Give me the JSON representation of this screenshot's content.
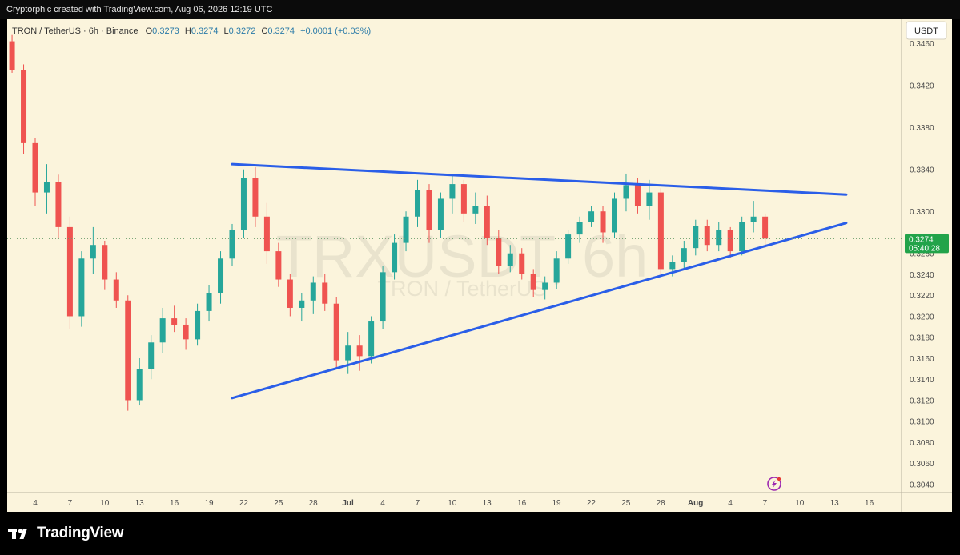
{
  "header": {
    "caption": "Cryptorphic created with TradingView.com, Aug 06, 2026 12:19 UTC"
  },
  "legend": {
    "symbol": "TRON / TetherUS · 6h · Binance",
    "o_label": "O",
    "o": "0.3273",
    "h_label": "H",
    "h": "0.3274",
    "l_label": "L",
    "l": "0.3272",
    "c_label": "C",
    "c": "0.3274",
    "change": "+0.0001 (+0.03%)"
  },
  "currency_button": "USDT",
  "watermark": {
    "ticker": "TRXUSDT, 6h",
    "name": "TRON / TetherUS"
  },
  "price_tag": {
    "price": "0.3274",
    "countdown": "05:40:28"
  },
  "footer": {
    "brand": "TradingView"
  },
  "colors": {
    "background": "#fbf4dc",
    "up": "#26a69a",
    "down": "#ef5350",
    "trendline": "#2a5ee8",
    "label_green": "#22a34a",
    "alert": "#9c27b0"
  },
  "icons": [
    "tradingview-logo-icon",
    "lightning-alert-icon"
  ],
  "chart_data": {
    "type": "candlestick",
    "title": "TRON / TetherUS · 6h · Binance",
    "ylabel": "USDT",
    "grid": false,
    "ylim": [
      0.3032,
      0.3483
    ],
    "y_ticks": [
      "0.3460",
      "0.3420",
      "0.3380",
      "0.3340",
      "0.3300",
      "0.3260",
      "0.3240",
      "0.3220",
      "0.3200",
      "0.3180",
      "0.3160",
      "0.3140",
      "0.3120",
      "0.3100",
      "0.3080",
      "0.3060",
      "0.3040"
    ],
    "x_ticks": [
      "4",
      "7",
      "10",
      "13",
      "16",
      "19",
      "22",
      "25",
      "28",
      "Jul",
      "4",
      "7",
      "10",
      "13",
      "16",
      "19",
      "22",
      "25",
      "28",
      "Aug",
      "4",
      "7",
      "10",
      "13",
      "16"
    ],
    "last_price": 0.3274,
    "series": [
      {
        "values": [
          {
            "t": "Jun 02",
            "o": 0.3462,
            "h": 0.3468,
            "l": 0.3432,
            "c": 0.3435
          },
          {
            "t": "Jun 03",
            "o": 0.3435,
            "h": 0.344,
            "l": 0.3355,
            "c": 0.3365
          },
          {
            "t": "Jun 04",
            "o": 0.3365,
            "h": 0.337,
            "l": 0.3305,
            "c": 0.3318
          },
          {
            "t": "Jun 05",
            "o": 0.3318,
            "h": 0.3345,
            "l": 0.3298,
            "c": 0.3328
          },
          {
            "t": "Jun 06",
            "o": 0.3328,
            "h": 0.3335,
            "l": 0.3275,
            "c": 0.3285
          },
          {
            "t": "Jun 07",
            "o": 0.3285,
            "h": 0.3295,
            "l": 0.3188,
            "c": 0.32
          },
          {
            "t": "Jun 08",
            "o": 0.32,
            "h": 0.3262,
            "l": 0.319,
            "c": 0.3255
          },
          {
            "t": "Jun 09",
            "o": 0.3255,
            "h": 0.3285,
            "l": 0.324,
            "c": 0.3268
          },
          {
            "t": "Jun 10",
            "o": 0.3268,
            "h": 0.3272,
            "l": 0.3225,
            "c": 0.3235
          },
          {
            "t": "Jun 11",
            "o": 0.3235,
            "h": 0.3242,
            "l": 0.3208,
            "c": 0.3215
          },
          {
            "t": "Jun 12",
            "o": 0.3215,
            "h": 0.322,
            "l": 0.311,
            "c": 0.312
          },
          {
            "t": "Jun 13",
            "o": 0.312,
            "h": 0.316,
            "l": 0.3115,
            "c": 0.315
          },
          {
            "t": "Jun 14",
            "o": 0.315,
            "h": 0.3182,
            "l": 0.314,
            "c": 0.3175
          },
          {
            "t": "Jun 15",
            "o": 0.3175,
            "h": 0.3208,
            "l": 0.3165,
            "c": 0.3198
          },
          {
            "t": "Jun 16",
            "o": 0.3198,
            "h": 0.321,
            "l": 0.3185,
            "c": 0.3192
          },
          {
            "t": "Jun 17",
            "o": 0.3192,
            "h": 0.3198,
            "l": 0.3168,
            "c": 0.3178
          },
          {
            "t": "Jun 18",
            "o": 0.3178,
            "h": 0.3212,
            "l": 0.3172,
            "c": 0.3205
          },
          {
            "t": "Jun 19",
            "o": 0.3205,
            "h": 0.323,
            "l": 0.3195,
            "c": 0.3222
          },
          {
            "t": "Jun 20",
            "o": 0.3222,
            "h": 0.3262,
            "l": 0.3212,
            "c": 0.3255
          },
          {
            "t": "Jun 21",
            "o": 0.3255,
            "h": 0.3288,
            "l": 0.3248,
            "c": 0.3282
          },
          {
            "t": "Jun 22",
            "o": 0.3282,
            "h": 0.334,
            "l": 0.3275,
            "c": 0.3332
          },
          {
            "t": "Jun 23",
            "o": 0.3332,
            "h": 0.3342,
            "l": 0.3285,
            "c": 0.3295
          },
          {
            "t": "Jun 24",
            "o": 0.3295,
            "h": 0.3308,
            "l": 0.325,
            "c": 0.3262
          },
          {
            "t": "Jun 25",
            "o": 0.3262,
            "h": 0.327,
            "l": 0.3228,
            "c": 0.3235
          },
          {
            "t": "Jun 26",
            "o": 0.3235,
            "h": 0.324,
            "l": 0.32,
            "c": 0.3208
          },
          {
            "t": "Jun 27",
            "o": 0.3208,
            "h": 0.3222,
            "l": 0.3195,
            "c": 0.3215
          },
          {
            "t": "Jun 28",
            "o": 0.3215,
            "h": 0.3238,
            "l": 0.3202,
            "c": 0.3232
          },
          {
            "t": "Jun 29",
            "o": 0.3232,
            "h": 0.324,
            "l": 0.3205,
            "c": 0.3212
          },
          {
            "t": "Jun 30",
            "o": 0.3212,
            "h": 0.3218,
            "l": 0.315,
            "c": 0.3158
          },
          {
            "t": "Jul 01",
            "o": 0.3158,
            "h": 0.3185,
            "l": 0.3145,
            "c": 0.3172
          },
          {
            "t": "Jul 02",
            "o": 0.3172,
            "h": 0.3182,
            "l": 0.3148,
            "c": 0.3162
          },
          {
            "t": "Jul 03",
            "o": 0.3162,
            "h": 0.32,
            "l": 0.3155,
            "c": 0.3195
          },
          {
            "t": "Jul 04",
            "o": 0.3195,
            "h": 0.3248,
            "l": 0.3188,
            "c": 0.3242
          },
          {
            "t": "Jul 05",
            "o": 0.3242,
            "h": 0.3278,
            "l": 0.3235,
            "c": 0.327
          },
          {
            "t": "Jul 06",
            "o": 0.327,
            "h": 0.33,
            "l": 0.3262,
            "c": 0.3295
          },
          {
            "t": "Jul 07",
            "o": 0.3295,
            "h": 0.333,
            "l": 0.3285,
            "c": 0.332
          },
          {
            "t": "Jul 08",
            "o": 0.332,
            "h": 0.3326,
            "l": 0.327,
            "c": 0.3282
          },
          {
            "t": "Jul 09",
            "o": 0.3282,
            "h": 0.3318,
            "l": 0.3275,
            "c": 0.3312
          },
          {
            "t": "Jul 10",
            "o": 0.3312,
            "h": 0.3335,
            "l": 0.3298,
            "c": 0.3326
          },
          {
            "t": "Jul 11",
            "o": 0.3326,
            "h": 0.333,
            "l": 0.329,
            "c": 0.3298
          },
          {
            "t": "Jul 12",
            "o": 0.3298,
            "h": 0.3318,
            "l": 0.3288,
            "c": 0.3305
          },
          {
            "t": "Jul 13",
            "o": 0.3305,
            "h": 0.3315,
            "l": 0.3268,
            "c": 0.3275
          },
          {
            "t": "Jul 14",
            "o": 0.3275,
            "h": 0.3282,
            "l": 0.324,
            "c": 0.3248
          },
          {
            "t": "Jul 15",
            "o": 0.3248,
            "h": 0.3268,
            "l": 0.3242,
            "c": 0.326
          },
          {
            "t": "Jul 16",
            "o": 0.326,
            "h": 0.3265,
            "l": 0.3235,
            "c": 0.324
          },
          {
            "t": "Jul 17",
            "o": 0.324,
            "h": 0.3245,
            "l": 0.3218,
            "c": 0.3225
          },
          {
            "t": "Jul 18",
            "o": 0.3225,
            "h": 0.3238,
            "l": 0.3216,
            "c": 0.3232
          },
          {
            "t": "Jul 19",
            "o": 0.3232,
            "h": 0.3262,
            "l": 0.3226,
            "c": 0.3255
          },
          {
            "t": "Jul 20",
            "o": 0.3255,
            "h": 0.3282,
            "l": 0.325,
            "c": 0.3278
          },
          {
            "t": "Jul 21",
            "o": 0.3278,
            "h": 0.3295,
            "l": 0.327,
            "c": 0.329
          },
          {
            "t": "Jul 22",
            "o": 0.329,
            "h": 0.3305,
            "l": 0.3285,
            "c": 0.33
          },
          {
            "t": "Jul 23",
            "o": 0.33,
            "h": 0.3305,
            "l": 0.327,
            "c": 0.328
          },
          {
            "t": "Jul 24",
            "o": 0.328,
            "h": 0.3318,
            "l": 0.3275,
            "c": 0.3312
          },
          {
            "t": "Jul 25",
            "o": 0.3312,
            "h": 0.3336,
            "l": 0.33,
            "c": 0.3325
          },
          {
            "t": "Jul 26",
            "o": 0.3325,
            "h": 0.3332,
            "l": 0.3298,
            "c": 0.3305
          },
          {
            "t": "Jul 27",
            "o": 0.3305,
            "h": 0.333,
            "l": 0.3292,
            "c": 0.3318
          },
          {
            "t": "Jul 28",
            "o": 0.3318,
            "h": 0.3322,
            "l": 0.3238,
            "c": 0.3245
          },
          {
            "t": "Jul 29",
            "o": 0.3245,
            "h": 0.3258,
            "l": 0.3238,
            "c": 0.3252
          },
          {
            "t": "Jul 30",
            "o": 0.3252,
            "h": 0.3272,
            "l": 0.3245,
            "c": 0.3265
          },
          {
            "t": "Jul 31",
            "o": 0.3265,
            "h": 0.3292,
            "l": 0.3258,
            "c": 0.3286
          },
          {
            "t": "Aug 01",
            "o": 0.3286,
            "h": 0.3292,
            "l": 0.3262,
            "c": 0.3268
          },
          {
            "t": "Aug 02",
            "o": 0.3268,
            "h": 0.329,
            "l": 0.3262,
            "c": 0.3282
          },
          {
            "t": "Aug 03",
            "o": 0.3282,
            "h": 0.3285,
            "l": 0.3256,
            "c": 0.3262
          },
          {
            "t": "Aug 04",
            "o": 0.3262,
            "h": 0.3295,
            "l": 0.3258,
            "c": 0.329
          },
          {
            "t": "Aug 05",
            "o": 0.329,
            "h": 0.331,
            "l": 0.328,
            "c": 0.3295
          },
          {
            "t": "Aug 06",
            "o": 0.3295,
            "h": 0.3298,
            "l": 0.3265,
            "c": 0.3274
          }
        ]
      }
    ],
    "trendlines": [
      {
        "role": "resistance",
        "from": {
          "t": "Jun 21",
          "y": 0.3345
        },
        "to": {
          "t": "Aug 13",
          "y": 0.3316
        }
      },
      {
        "role": "support",
        "from": {
          "t": "Jun 21",
          "y": 0.3122
        },
        "to": {
          "t": "Aug 13",
          "y": 0.3289
        }
      }
    ]
  }
}
